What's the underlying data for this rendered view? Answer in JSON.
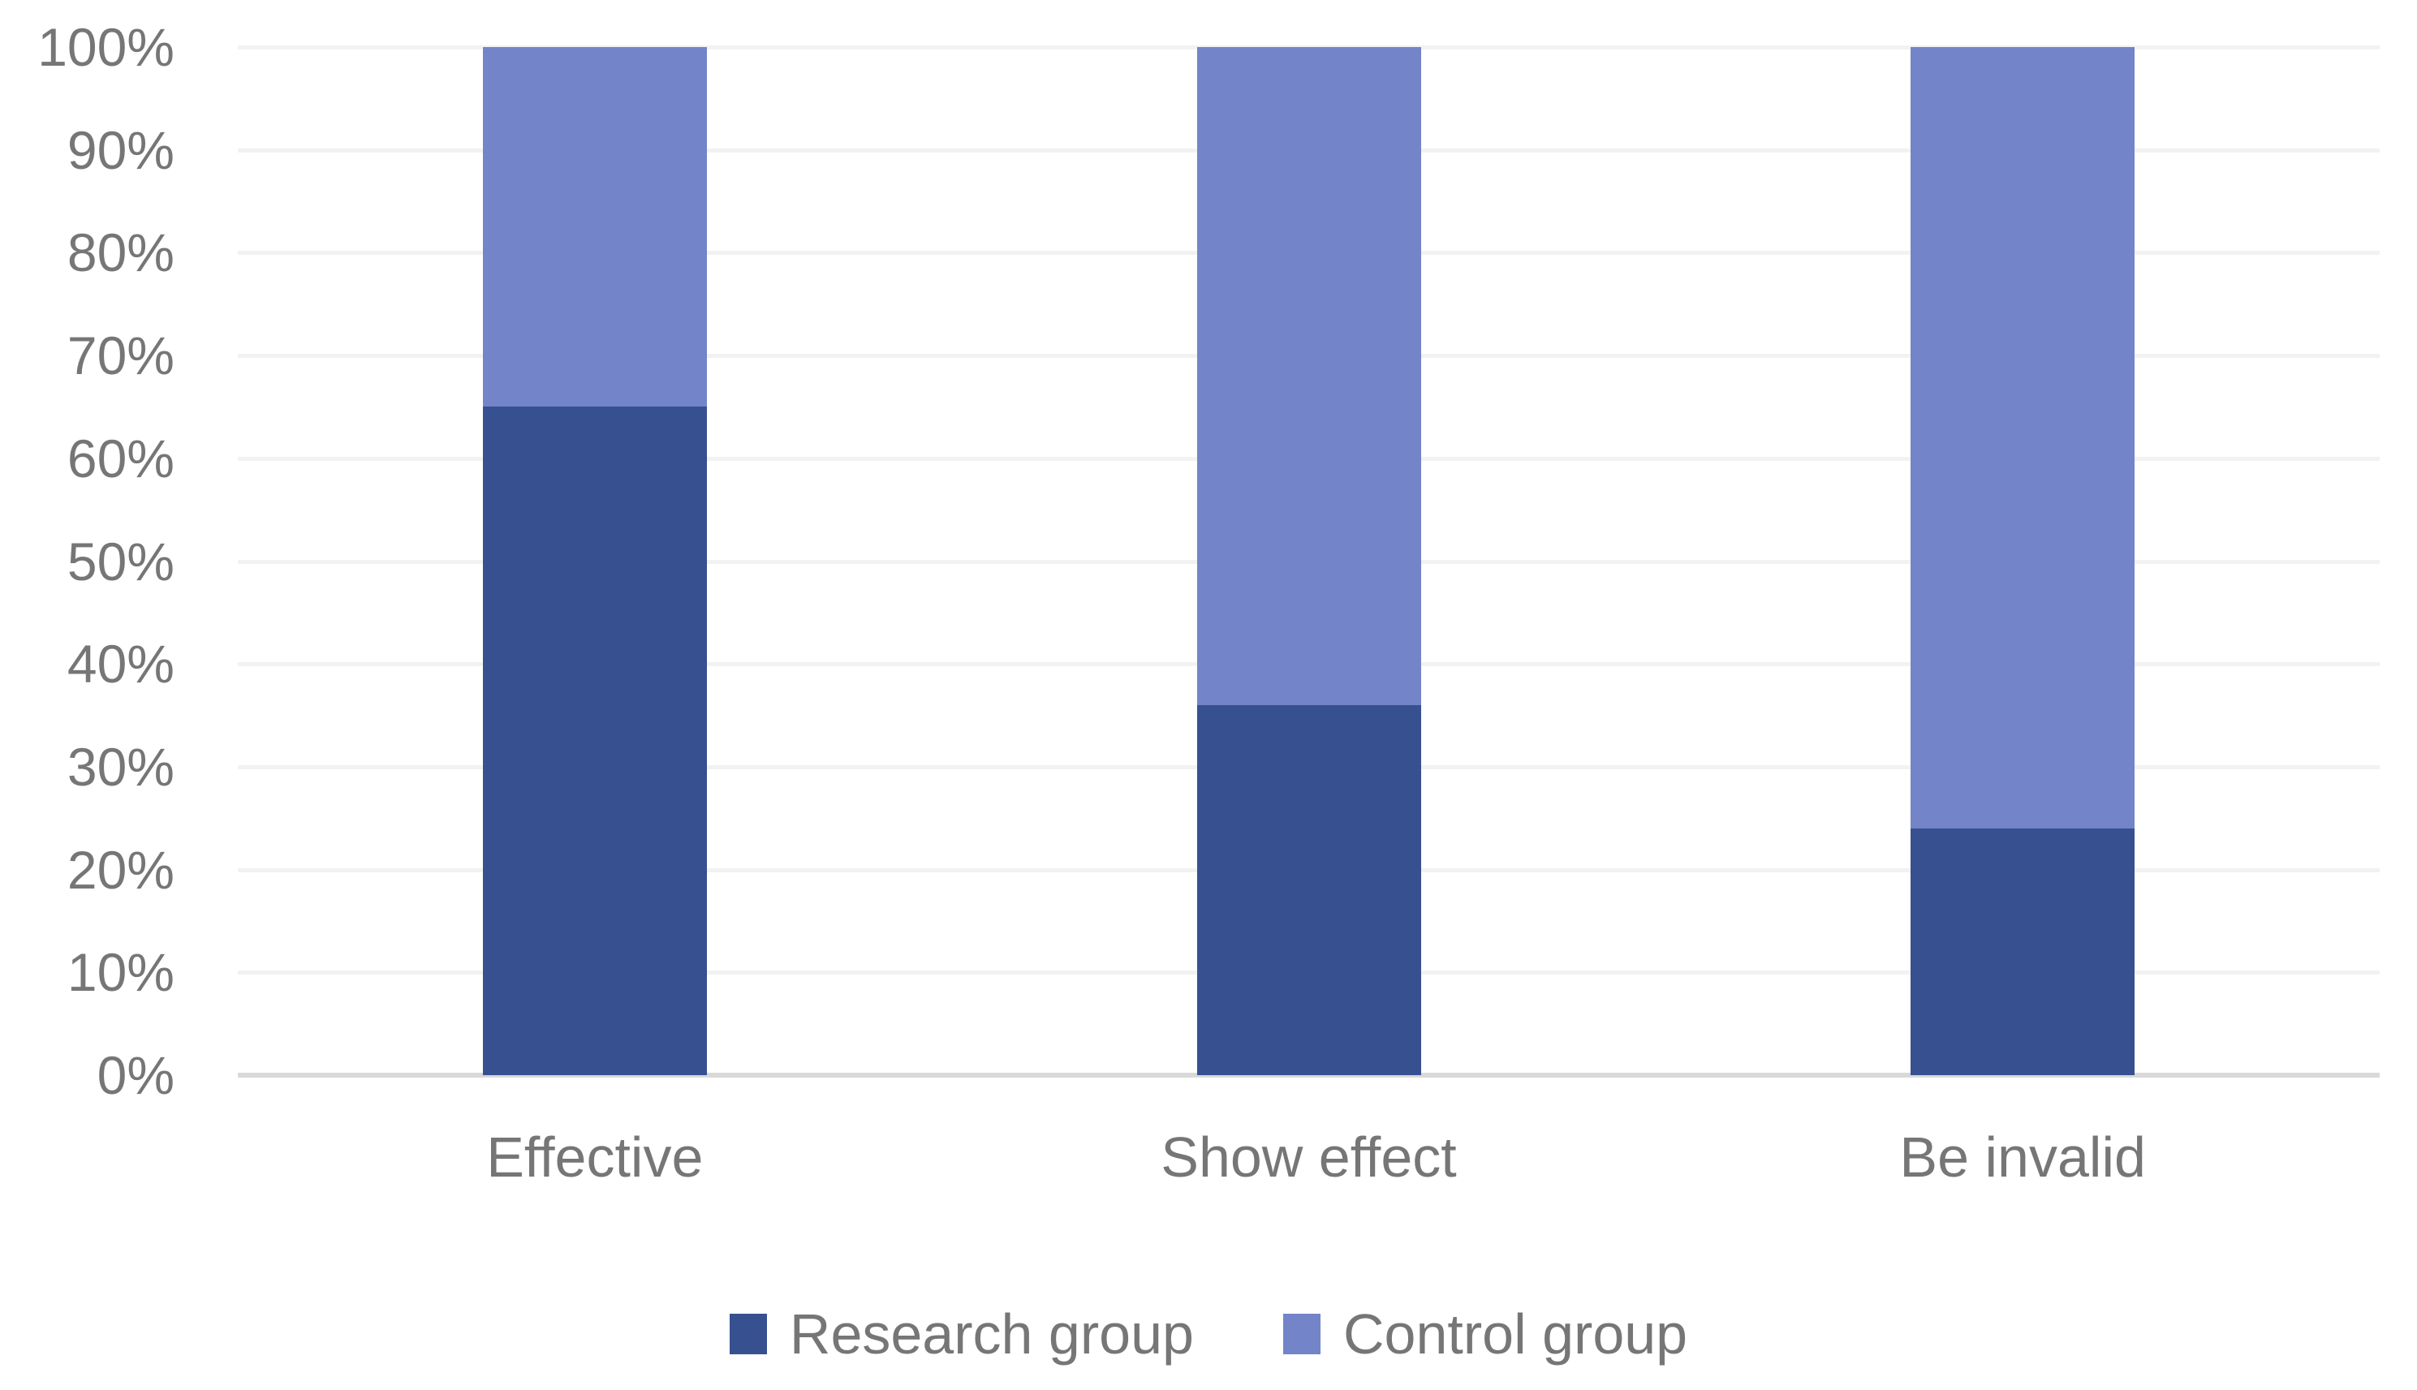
{
  "chart_data": {
    "type": "bar",
    "variant": "stacked-100-percent-column",
    "title": "",
    "xlabel": "",
    "ylabel": "",
    "categories": [
      "Effective",
      "Show effect",
      "Be invalid"
    ],
    "series": [
      {
        "name": "Research group",
        "color": "#37508F",
        "values": [
          65,
          36,
          24
        ]
      },
      {
        "name": "Control group",
        "color": "#7385C8",
        "values": [
          35,
          64,
          76
        ]
      }
    ],
    "y_ticks": [
      {
        "value": 0,
        "label": "0%"
      },
      {
        "value": 10,
        "label": "10%"
      },
      {
        "value": 20,
        "label": "20%"
      },
      {
        "value": 30,
        "label": "30%"
      },
      {
        "value": 40,
        "label": "40%"
      },
      {
        "value": 50,
        "label": "50%"
      },
      {
        "value": 60,
        "label": "60%"
      },
      {
        "value": 70,
        "label": "70%"
      },
      {
        "value": 80,
        "label": "80%"
      },
      {
        "value": 90,
        "label": "90%"
      },
      {
        "value": 100,
        "label": "100%"
      }
    ],
    "ylim": [
      0,
      100
    ],
    "grid": "horizontal",
    "legend_position": "bottom"
  },
  "colors": {
    "background": "#FFFFFF",
    "gridline": "#F2F2F2",
    "axis_line": "#D9D9D9",
    "label_text": "#767676",
    "research_group": "#37508F",
    "control_group": "#7385C8"
  }
}
